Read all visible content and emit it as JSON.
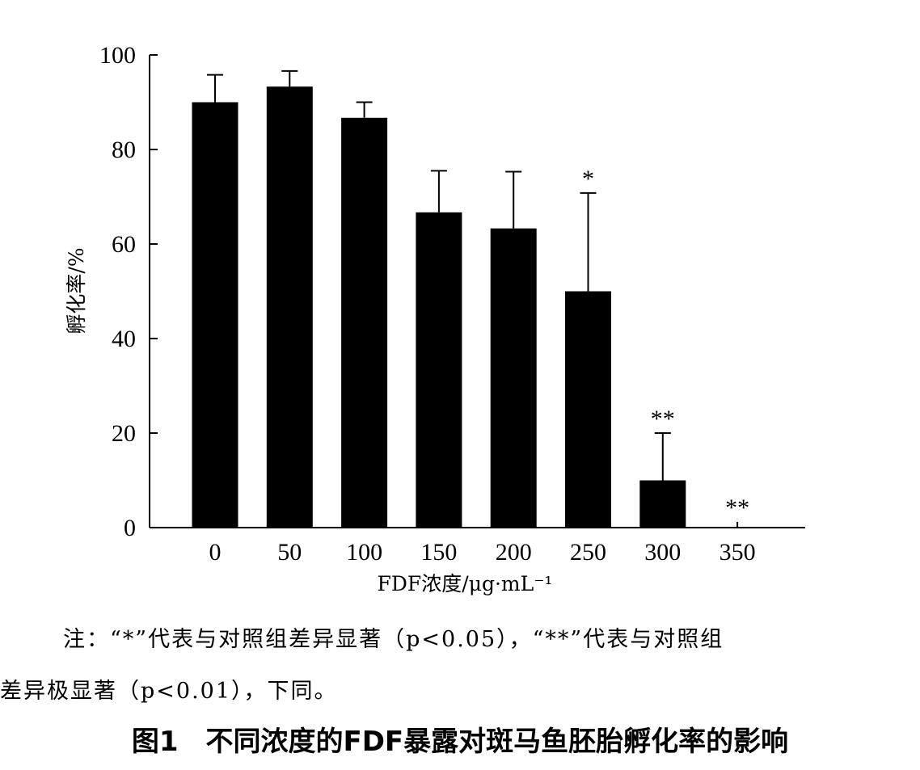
{
  "chart_data": {
    "type": "bar",
    "title": "",
    "xlabel": "FDF浓度/μg·mL⁻¹",
    "ylabel": "孵化率/%",
    "categories": [
      "0",
      "50",
      "100",
      "150",
      "200",
      "250",
      "300",
      "350"
    ],
    "values": [
      90,
      93.3,
      86.7,
      66.7,
      63.3,
      50,
      10,
      0
    ],
    "error_upper": [
      5.8,
      3.3,
      3.3,
      8.8,
      12,
      20.8,
      10,
      1.2
    ],
    "significance": [
      "",
      "",
      "",
      "",
      "",
      "*",
      "**",
      "**"
    ],
    "ylim": [
      0,
      100
    ],
    "yticks": [
      0,
      20,
      40,
      60,
      80,
      100
    ],
    "grid": false,
    "bar_color": "#000000"
  },
  "note": {
    "line1": "注：“*”代表与对照组差异显著（p<0.05），“**”代表与对照组",
    "line2": "差异极显著（p<0.01），下同。"
  },
  "caption": "图1　不同浓度的FDF暴露对斑马鱼胚胎孵化率的影响"
}
